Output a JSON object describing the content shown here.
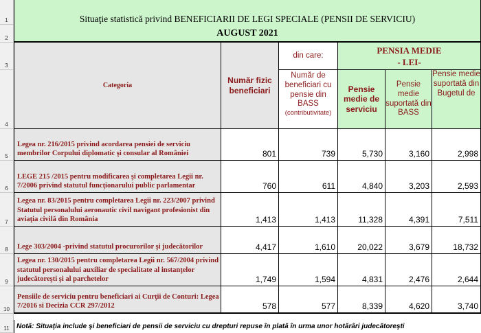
{
  "row_numbers": [
    "1",
    "2",
    "3",
    "4",
    "5",
    "6",
    "7",
    "8",
    "9",
    "10",
    "11"
  ],
  "title": {
    "line1": "Situaţie statistică privind BENEFICIARII DE LEGI SPECIALE (PENSII DE SERVICIU)",
    "line2": "AUGUST  2021"
  },
  "header": {
    "categoria": "Categoria",
    "numar_fizic": "Număr fizic beneficiari",
    "din_care": "din care:",
    "numar_bass": "Număr de beneficiari cu pensie din BASS",
    "numar_bass_note": "(contributivitate)",
    "pensia_medie": "PENSIA MEDIE",
    "lei": "- LEI-",
    "pensie_medie_serviciu": "Pensie medie de serviciu",
    "pensie_bass": "Pensie medie suportată din BASS",
    "pensie_buget": "Pensie medie suportată din Bugetul de"
  },
  "rows": [
    {
      "label": "Legea nr. 216/2015 privind acordarea pensiei de serviciu membrilor Corpului diplomatic şi consular al României",
      "fizic": "801",
      "bass": "739",
      "serviciu": "5,730",
      "suport_bass": "3,160",
      "buget": "2,998"
    },
    {
      "label": "LEGE 215 /2015  pentru modificarea şi completarea Legii nr. 7/2006 privind statutul funcţionarului public parlamentar",
      "fizic": "760",
      "bass": "611",
      "serviciu": "4,840",
      "suport_bass": "3,203",
      "buget": "2,593"
    },
    {
      "label": " Legea nr. 83/2015 pentru completarea Legii nr. 223/2007 privind Statutul personalului aeronautic civil navigant profesionist din aviaţia civilă din România",
      "fizic": "1,413",
      "bass": "1,413",
      "serviciu": "11,328",
      "suport_bass": "4,391",
      "buget": "7,511"
    },
    {
      "label": "Lege 303/2004 -privind statutul procurorilor şi judecătorilor",
      "fizic": "4,417",
      "bass": "1,610",
      "serviciu": "20,022",
      "suport_bass": "3,679",
      "buget": "18,732"
    },
    {
      "label": "Legea nr. 130/2015 pentru completarea Legii nr. 567/2004 privind statutul personalului auxiliar de specialitate al instanţelor judecătoreşti şi al parchetelor",
      "fizic": "1,749",
      "bass": "1,594",
      "serviciu": "4,831",
      "suport_bass": "2,476",
      "buget": "2,644"
    },
    {
      "label": "Pensiile de serviciu pentru beneficiari ai Curţii de Conturi: Legea 7/2016 si  Decizia CCR 297/2012",
      "fizic": "578",
      "bass": "577",
      "serviciu": "8,339",
      "suport_bass": "4,620",
      "buget": "3,740"
    }
  ],
  "note": "Notă: Situaţia include şi beneficiari de pensii de serviciu cu drepturi repuse în plată în urma unor hotărâri judecătoreşti",
  "colors": {
    "title_bg": "#ccf5cc",
    "header_gray": "#e6e6e6",
    "maroon_text": "#8b1a1a",
    "gutter": "#f0f0f0"
  }
}
